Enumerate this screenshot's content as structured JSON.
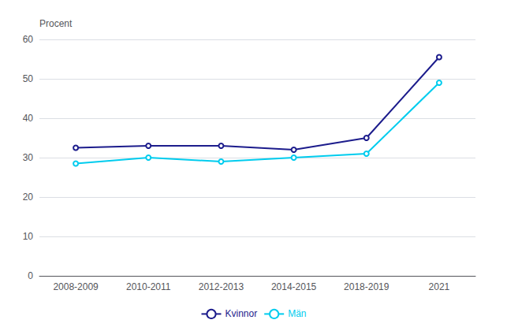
{
  "chart_data": {
    "type": "line",
    "ylabel": "Procent",
    "categories": [
      "2008-2009",
      "2010-2011",
      "2012-2013",
      "2014-2015",
      "2018-2019",
      "2021"
    ],
    "series": [
      {
        "name": "Kvinnor",
        "color": "#1C1C8C",
        "values": [
          32.5,
          33.0,
          33.0,
          32.0,
          35.0,
          55.5
        ]
      },
      {
        "name": "Män",
        "color": "#00CCEE",
        "values": [
          28.5,
          30.0,
          29.0,
          30.0,
          31.0,
          49.0
        ]
      }
    ],
    "ylim": [
      0,
      60
    ],
    "yticks": [
      0,
      10,
      20,
      30,
      40,
      50,
      60
    ],
    "grid": true,
    "legend": "bottom"
  }
}
